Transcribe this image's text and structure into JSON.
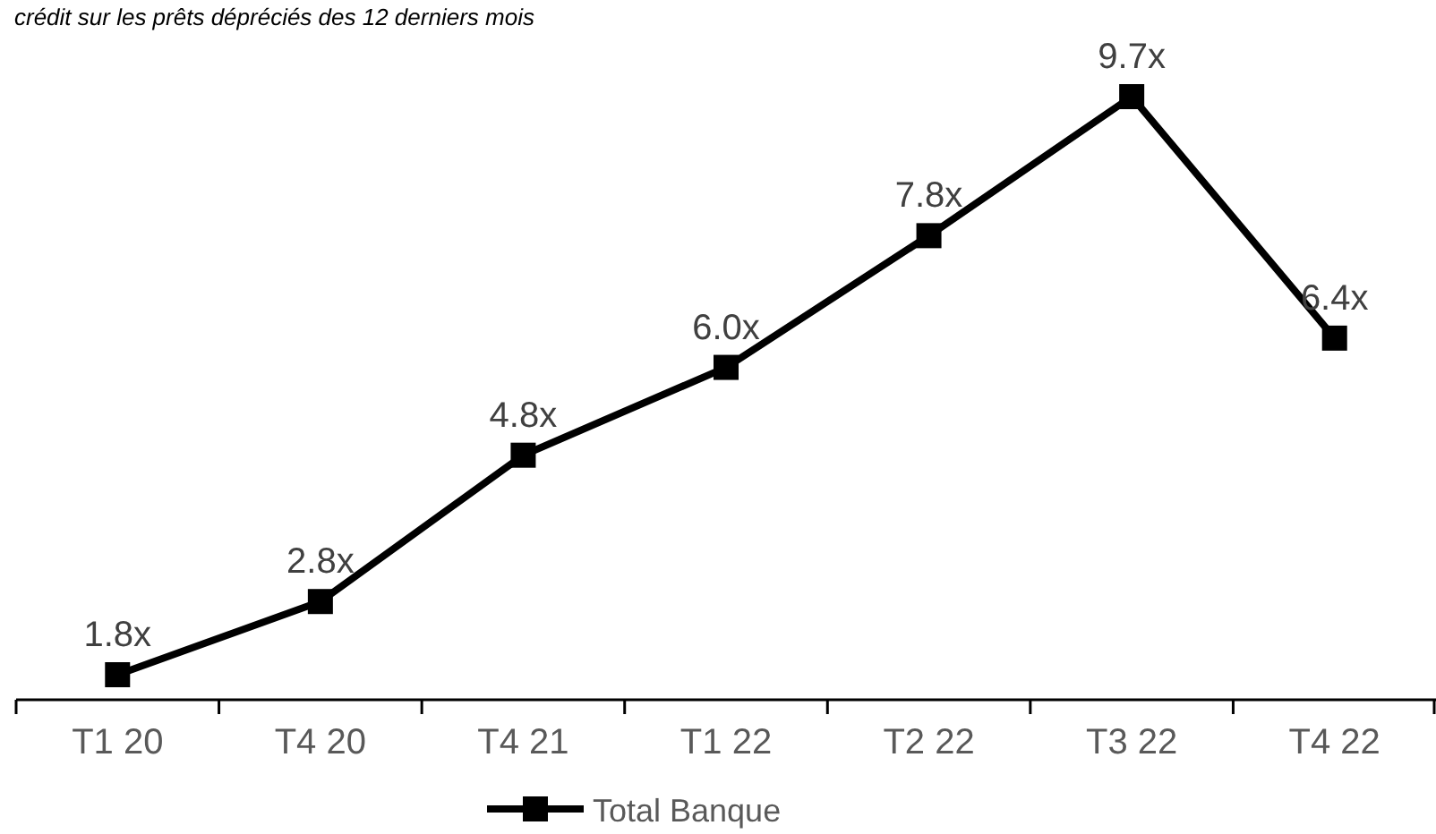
{
  "chart_data": {
    "type": "line",
    "title": "crédit sur les prêts dépréciés des 12 derniers mois",
    "categories": [
      "T1 20",
      "T4 20",
      "T4 21",
      "T1 22",
      "T2 22",
      "T3 22",
      "T4 22"
    ],
    "series": [
      {
        "name": "Total Banque",
        "color": "#000000",
        "values": [
          1.8,
          2.8,
          4.8,
          6.0,
          7.8,
          9.7,
          6.4
        ],
        "value_labels": [
          "1.8x",
          "2.8x",
          "4.8x",
          "6.0x",
          "7.8x",
          "9.7x",
          "6.4x"
        ]
      }
    ],
    "marker": "square",
    "line_style": "solid",
    "legend": "bottom",
    "tick_labels": "x",
    "grid": false
  }
}
